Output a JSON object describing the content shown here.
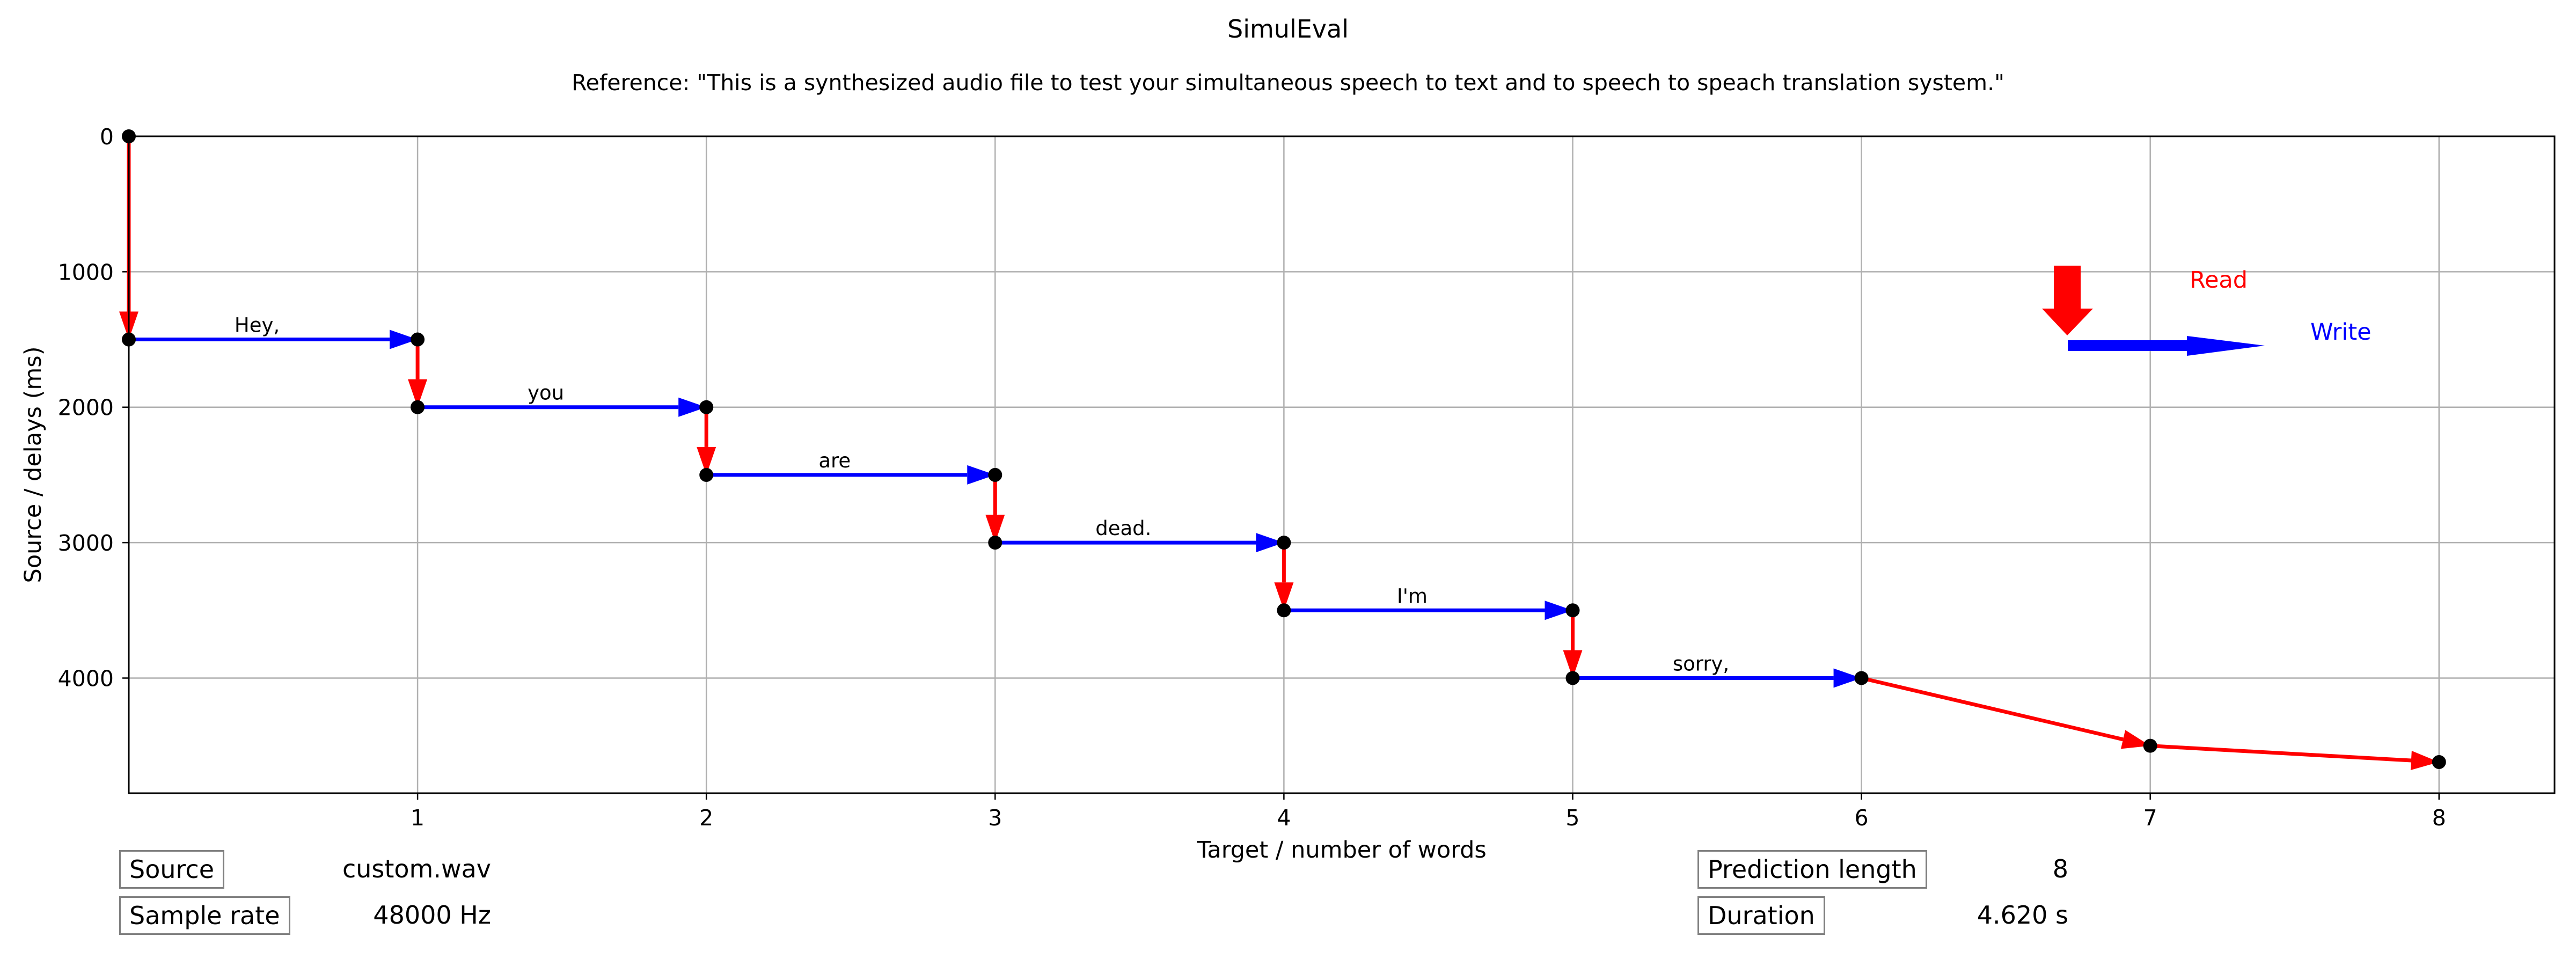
{
  "chart_data": {
    "type": "line",
    "title": "SimulEval",
    "subtitle": "Reference: \"This is a synthesized audio file to test your simultaneous speech to text and to speech to speach translation system.\"",
    "xlabel": "Target / number of words",
    "ylabel": "Source / delays (ms)",
    "xlim": [
      0,
      8.4
    ],
    "ylim": [
      4850,
      0
    ],
    "y_inverted": true,
    "grid": true,
    "xticks": [
      "1",
      "2",
      "3",
      "4",
      "5",
      "6",
      "7",
      "8"
    ],
    "yticks": [
      "0",
      "1000",
      "2000",
      "3000",
      "4000"
    ],
    "legend": {
      "placement": "top-right",
      "read_label": "Read",
      "write_label": "Write",
      "read_color": "#ff0000",
      "write_color": "#0000ff"
    },
    "points": [
      {
        "x": 0,
        "y": 0
      },
      {
        "x": 0,
        "y": 1500
      },
      {
        "x": 1,
        "y": 1500
      },
      {
        "x": 1,
        "y": 2000
      },
      {
        "x": 2,
        "y": 2000
      },
      {
        "x": 2,
        "y": 2500
      },
      {
        "x": 3,
        "y": 2500
      },
      {
        "x": 3,
        "y": 3000
      },
      {
        "x": 4,
        "y": 3000
      },
      {
        "x": 4,
        "y": 3500
      },
      {
        "x": 5,
        "y": 3500
      },
      {
        "x": 5,
        "y": 4000
      },
      {
        "x": 6,
        "y": 4000
      },
      {
        "x": 7,
        "y": 4500
      },
      {
        "x": 8,
        "y": 4620
      }
    ],
    "segments": [
      {
        "from": 0,
        "to": 1,
        "kind": "read"
      },
      {
        "from": 1,
        "to": 2,
        "kind": "write",
        "word": "Hey,"
      },
      {
        "from": 2,
        "to": 3,
        "kind": "read"
      },
      {
        "from": 3,
        "to": 4,
        "kind": "write",
        "word": "you"
      },
      {
        "from": 4,
        "to": 5,
        "kind": "read"
      },
      {
        "from": 5,
        "to": 6,
        "kind": "write",
        "word": "are"
      },
      {
        "from": 6,
        "to": 7,
        "kind": "read"
      },
      {
        "from": 7,
        "to": 8,
        "kind": "write",
        "word": "dead."
      },
      {
        "from": 8,
        "to": 9,
        "kind": "read"
      },
      {
        "from": 9,
        "to": 10,
        "kind": "write",
        "word": "I'm"
      },
      {
        "from": 10,
        "to": 11,
        "kind": "read"
      },
      {
        "from": 11,
        "to": 12,
        "kind": "write",
        "word": "sorry,"
      },
      {
        "from": 12,
        "to": 13,
        "kind": "read"
      },
      {
        "from": 13,
        "to": 14,
        "kind": "read"
      }
    ],
    "colors": {
      "read": "#ff0000",
      "write": "#0000ff",
      "point": "#000000",
      "grid": "#b0b0b0"
    }
  },
  "info": {
    "source_label": "Source",
    "source_value": "custom.wav",
    "sample_rate_label": "Sample rate",
    "sample_rate_value": "48000 Hz",
    "prediction_length_label": "Prediction length",
    "prediction_length_value": "8",
    "duration_label": "Duration",
    "duration_value": "4.620 s"
  }
}
